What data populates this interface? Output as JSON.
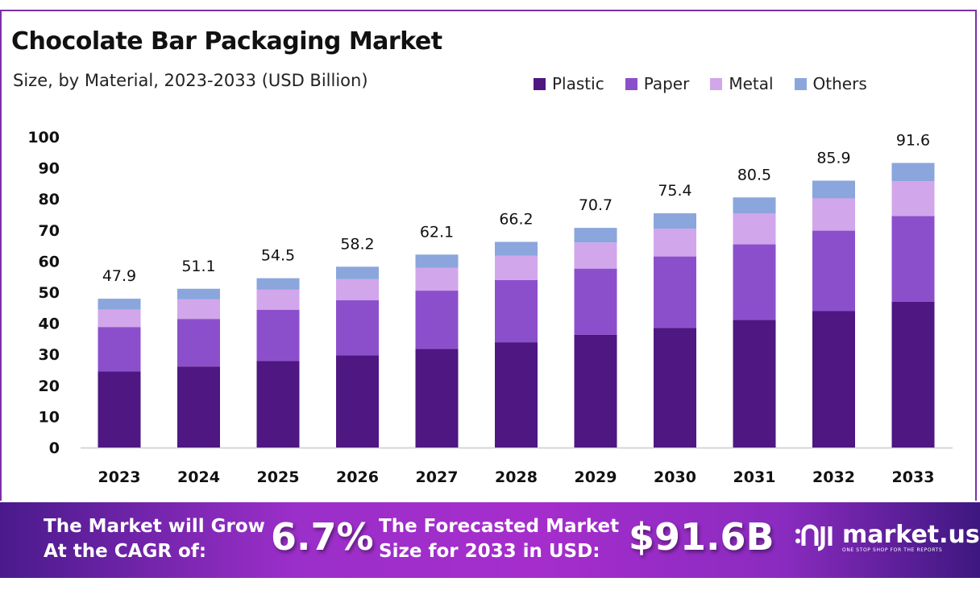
{
  "chart_data": {
    "type": "bar",
    "stacked": true,
    "title": "Chocolate Bar Packaging Market",
    "subtitle": "Size, by Material, 2023-2033 (USD Billion)",
    "xlabel": "",
    "ylabel": "",
    "ylim": [
      0,
      100
    ],
    "yticks": [
      "0",
      "10",
      "20",
      "30",
      "40",
      "50",
      "60",
      "70",
      "80",
      "90",
      "100"
    ],
    "categories": [
      "2023",
      "2024",
      "2025",
      "2026",
      "2027",
      "2028",
      "2029",
      "2030",
      "2031",
      "2032",
      "2033"
    ],
    "series": [
      {
        "name": "Plastic",
        "color": "#4e1782",
        "values": [
          24.5,
          26.1,
          27.9,
          29.7,
          31.8,
          33.9,
          36.3,
          38.5,
          41.1,
          44.0,
          46.9
        ]
      },
      {
        "name": "Paper",
        "color": "#8c4fcc",
        "values": [
          14.3,
          15.3,
          16.4,
          17.7,
          18.7,
          20.0,
          21.3,
          23.0,
          24.3,
          25.8,
          27.6
        ]
      },
      {
        "name": "Metal",
        "color": "#d2a6ea",
        "values": [
          5.6,
          6.3,
          6.5,
          6.8,
          7.4,
          7.8,
          8.4,
          8.9,
          9.9,
          10.4,
          11.2
        ]
      },
      {
        "name": "Others",
        "color": "#8aa6dc",
        "values": [
          3.5,
          3.4,
          3.7,
          4.0,
          4.2,
          4.5,
          4.7,
          5.0,
          5.2,
          5.7,
          5.9
        ]
      }
    ],
    "totals": [
      "47.9",
      "51.1",
      "54.5",
      "58.2",
      "62.1",
      "66.2",
      "70.7",
      "75.4",
      "80.5",
      "85.9",
      "91.6"
    ],
    "legend_position": "top-right",
    "grid": false
  },
  "banner": {
    "cagr_text_1": "The Market will Grow",
    "cagr_text_2": "At the CAGR of:",
    "cagr_value": "6.7%",
    "forecast_text_1": "The Forecasted Market",
    "forecast_text_2": "Size for 2033 in USD:",
    "forecast_value": "$91.6B",
    "logo_name": "market.us",
    "logo_tagline": "ONE STOP SHOP FOR THE REPORTS"
  }
}
